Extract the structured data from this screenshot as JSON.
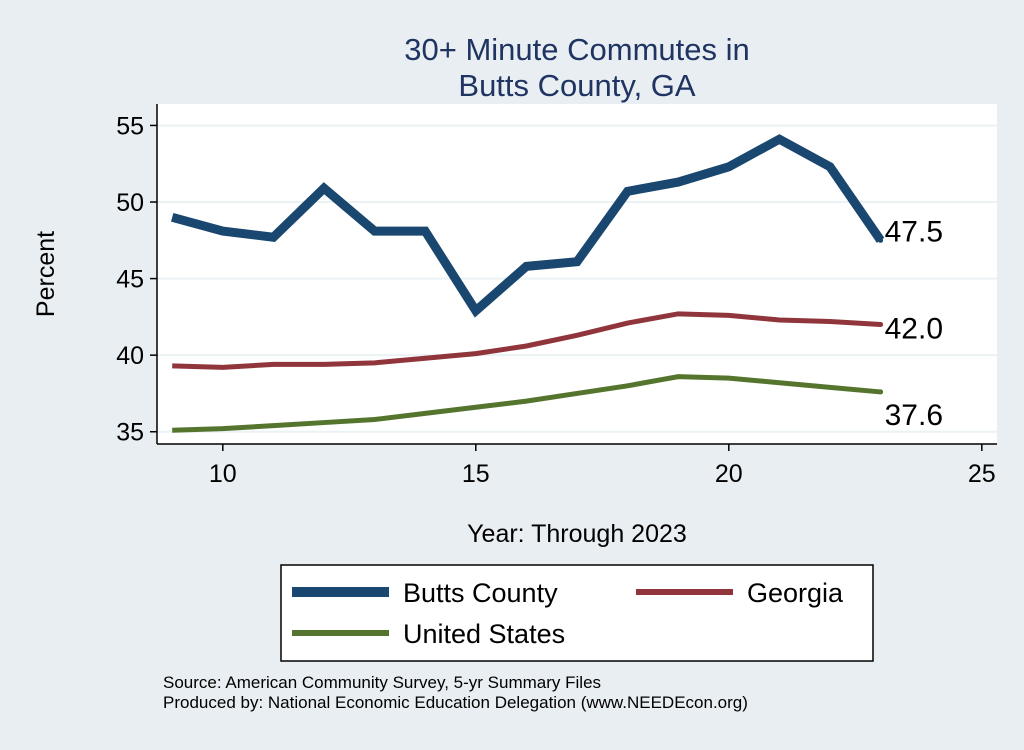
{
  "chart_data": {
    "type": "line",
    "title_lines": [
      "30+ Minute Commutes in",
      "Butts County, GA"
    ],
    "xlabel": "Year: Through 2023",
    "ylabel": "Percent",
    "xlim": [
      8.7,
      25.3
    ],
    "ylim": [
      34.2,
      56.4
    ],
    "xticks": [
      10,
      15,
      20,
      25
    ],
    "yticks": [
      35,
      40,
      45,
      50,
      55
    ],
    "grid": true,
    "legend_position": "bottom",
    "series": [
      {
        "name": "Butts County",
        "color": "#1a476f",
        "line_width": 9,
        "x": [
          9,
          10,
          11,
          12,
          13,
          14,
          15,
          16,
          17,
          18,
          19,
          20,
          21,
          22,
          23
        ],
        "values": [
          49.0,
          48.1,
          47.7,
          50.9,
          48.1,
          48.1,
          42.9,
          45.8,
          46.1,
          50.7,
          51.3,
          52.3,
          54.1,
          52.3,
          47.5
        ],
        "end_label": "47.5"
      },
      {
        "name": "Georgia",
        "color": "#90353b",
        "line_width": 5,
        "x": [
          9,
          10,
          11,
          12,
          13,
          14,
          15,
          16,
          17,
          18,
          19,
          20,
          21,
          22,
          23
        ],
        "values": [
          39.3,
          39.2,
          39.4,
          39.4,
          39.5,
          39.8,
          40.1,
          40.6,
          41.3,
          42.1,
          42.7,
          42.6,
          42.3,
          42.2,
          42.0
        ],
        "end_label": "42.0"
      },
      {
        "name": "United States",
        "color": "#55752f",
        "line_width": 5,
        "x": [
          9,
          10,
          11,
          12,
          13,
          14,
          15,
          16,
          17,
          18,
          19,
          20,
          21,
          22,
          23
        ],
        "values": [
          35.1,
          35.2,
          35.4,
          35.6,
          35.8,
          36.2,
          36.6,
          37.0,
          37.5,
          38.0,
          38.6,
          38.5,
          38.2,
          37.9,
          37.6
        ],
        "end_label": "37.6"
      }
    ],
    "notes": [
      "Source: American Community Survey, 5-yr Summary Files",
      "Produced by: National Economic Education Delegation (www.NEEDEcon.org)"
    ]
  }
}
